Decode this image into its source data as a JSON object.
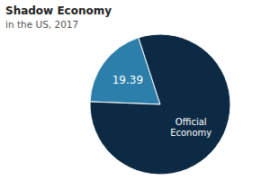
{
  "chart_data": {
    "type": "pie",
    "title": "Shadow Economy",
    "subtitle": "in the US, 2017",
    "values": [
      19.39,
      80.61
    ],
    "value_labels": [
      "19.39",
      null
    ],
    "colors": [
      "#2b7faa",
      "#0d2a45"
    ],
    "annotations": [
      {
        "text": "Official\nEconomy"
      }
    ]
  }
}
